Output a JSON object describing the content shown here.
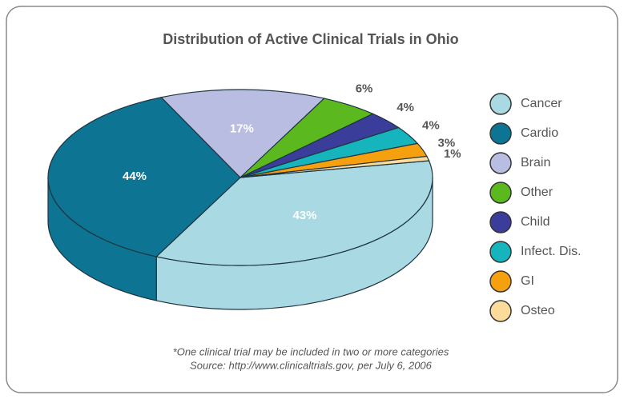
{
  "chart_data": {
    "type": "pie3d",
    "title": "Distribution of Active Clinical Trials in Ohio",
    "categories": [
      "Cancer",
      "Cardio",
      "Brain",
      "Other",
      "Child",
      "Infect. Dis.",
      "GI",
      "Osteo"
    ],
    "values": [
      43,
      44,
      17,
      6,
      4,
      4,
      3,
      1
    ],
    "value_labels": [
      "43%",
      "44%",
      "17%",
      "6%",
      "4%",
      "4%",
      "3%",
      "1%"
    ],
    "colors": [
      "#a9d9e2",
      "#0d7493",
      "#b9bde2",
      "#5cb81f",
      "#3b3d9b",
      "#16b4bd",
      "#f5a10f",
      "#fddc9b"
    ],
    "notes": [
      "*One clinical trial may be included in two or more categories",
      "Source: http://www.clinicaltrials.gov, per July 6, 2006"
    ]
  }
}
